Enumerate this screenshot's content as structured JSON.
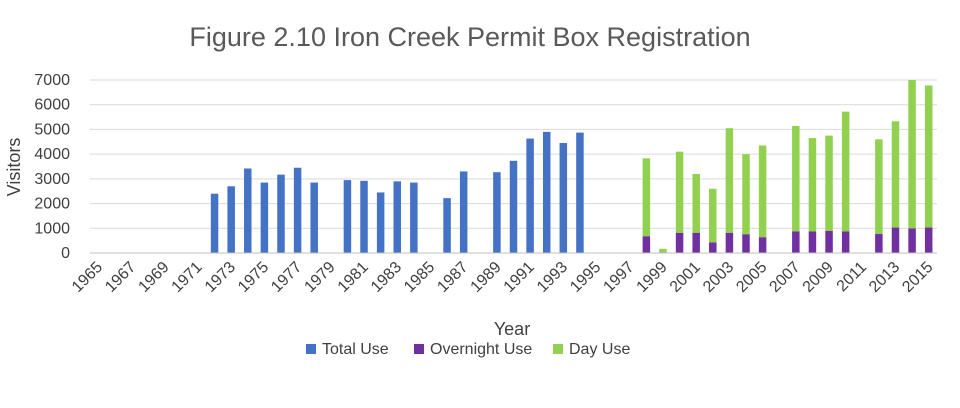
{
  "chart_data": {
    "type": "bar",
    "title": "Figure 2.10 Iron Creek Permit Box Registration",
    "xlabel": "Year",
    "ylabel": "Visitors",
    "ylim": [
      0,
      7000
    ],
    "yticks": [
      0,
      1000,
      2000,
      3000,
      4000,
      5000,
      6000,
      7000
    ],
    "x_range": [
      1965,
      2015
    ],
    "xtick_labels": [
      "1965",
      "1967",
      "1969",
      "1971",
      "1973",
      "1975",
      "1977",
      "1979",
      "1981",
      "1983",
      "1985",
      "1987",
      "1989",
      "1991",
      "1993",
      "1995",
      "1997",
      "1999",
      "2001",
      "2003",
      "2005",
      "2007",
      "2009",
      "2011",
      "2013",
      "2015"
    ],
    "grid": "horizontal",
    "legend_position": "bottom",
    "stacking": "Overnight Use and Day Use stacked",
    "series": [
      {
        "name": "Total Use",
        "color": "#4472C4",
        "points": [
          {
            "x": 1972,
            "y": 2400
          },
          {
            "x": 1973,
            "y": 2700
          },
          {
            "x": 1974,
            "y": 3420
          },
          {
            "x": 1975,
            "y": 2850
          },
          {
            "x": 1976,
            "y": 3170
          },
          {
            "x": 1977,
            "y": 3450
          },
          {
            "x": 1978,
            "y": 2850
          },
          {
            "x": 1980,
            "y": 2950
          },
          {
            "x": 1981,
            "y": 2920
          },
          {
            "x": 1982,
            "y": 2450
          },
          {
            "x": 1983,
            "y": 2900
          },
          {
            "x": 1984,
            "y": 2850
          },
          {
            "x": 1986,
            "y": 2220
          },
          {
            "x": 1987,
            "y": 3300
          },
          {
            "x": 1989,
            "y": 3270
          },
          {
            "x": 1990,
            "y": 3730
          },
          {
            "x": 1991,
            "y": 4630
          },
          {
            "x": 1992,
            "y": 4900
          },
          {
            "x": 1993,
            "y": 4450
          },
          {
            "x": 1994,
            "y": 4870
          }
        ]
      },
      {
        "name": "Overnight Use",
        "color": "#7030A0",
        "points": [
          {
            "x": 1998,
            "y": 680
          },
          {
            "x": 1999,
            "y": 30
          },
          {
            "x": 2000,
            "y": 820
          },
          {
            "x": 2001,
            "y": 820
          },
          {
            "x": 2002,
            "y": 430
          },
          {
            "x": 2003,
            "y": 820
          },
          {
            "x": 2004,
            "y": 760
          },
          {
            "x": 2005,
            "y": 640
          },
          {
            "x": 2007,
            "y": 880
          },
          {
            "x": 2008,
            "y": 870
          },
          {
            "x": 2009,
            "y": 900
          },
          {
            "x": 2010,
            "y": 870
          },
          {
            "x": 2012,
            "y": 770
          },
          {
            "x": 2013,
            "y": 1030
          },
          {
            "x": 2014,
            "y": 1000
          },
          {
            "x": 2015,
            "y": 1030
          }
        ]
      },
      {
        "name": "Day Use",
        "color": "#92D050",
        "points": [
          {
            "x": 1998,
            "y": 3150
          },
          {
            "x": 1999,
            "y": 140
          },
          {
            "x": 2000,
            "y": 3280
          },
          {
            "x": 2001,
            "y": 2380
          },
          {
            "x": 2002,
            "y": 2170
          },
          {
            "x": 2003,
            "y": 4230
          },
          {
            "x": 2004,
            "y": 3240
          },
          {
            "x": 2005,
            "y": 3710
          },
          {
            "x": 2007,
            "y": 4260
          },
          {
            "x": 2008,
            "y": 3780
          },
          {
            "x": 2009,
            "y": 3850
          },
          {
            "x": 2010,
            "y": 4850
          },
          {
            "x": 2012,
            "y": 3830
          },
          {
            "x": 2013,
            "y": 4300
          },
          {
            "x": 2014,
            "y": 6000
          },
          {
            "x": 2015,
            "y": 5750
          }
        ]
      }
    ]
  }
}
